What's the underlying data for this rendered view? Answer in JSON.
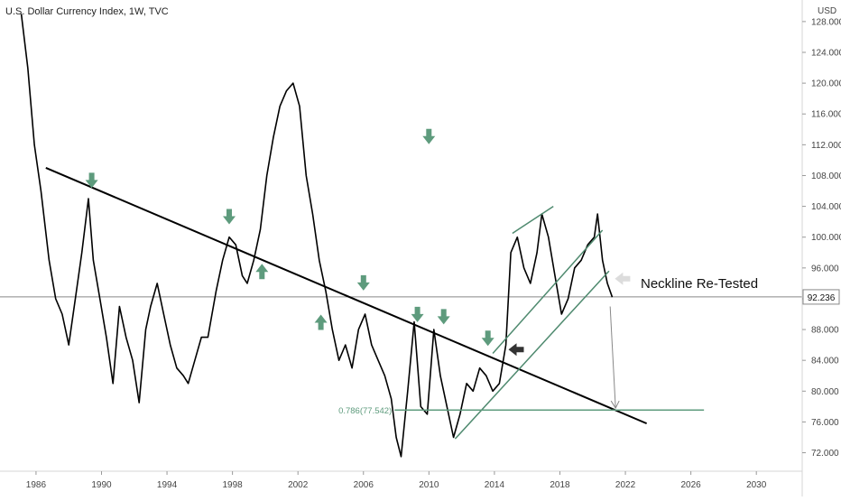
{
  "chart_data": {
    "type": "line",
    "title": "U.S. Dollar Currency Index, 1W, TVC",
    "currency_label": "USD",
    "current_price": 92.236,
    "current_price_label": "92.236",
    "annotation_text": "Neckline Re-Tested",
    "fib_label": "0.786(77.542)",
    "fib_value": 77.542,
    "colors": {
      "price": "#000000",
      "neckline": "#000000",
      "channel": "#4f8a6f",
      "arrow_green": "#5e9b7d",
      "arrow_dark": "#333333",
      "fib_line": "#5e9b7d",
      "projection": "#888888",
      "price_line": "#888888",
      "price_tag_bg": "#ffffff",
      "axis_text": "#444444"
    },
    "x_ticks": [
      1986,
      1990,
      1994,
      1998,
      2002,
      2006,
      2010,
      2014,
      2018,
      2022,
      2026,
      2030
    ],
    "x_tick_labels": [
      "1986",
      "1990",
      "1994",
      "1998",
      "2002",
      "2006",
      "2010",
      "2014",
      "2018",
      "2022",
      "2026",
      "2030"
    ],
    "xlim": [
      1983.8,
      2032.8
    ],
    "y_ticks": [
      72,
      76,
      80,
      84,
      88,
      92,
      96,
      100,
      104,
      108,
      112,
      116,
      120,
      124,
      128
    ],
    "y_tick_labels": [
      "72.000",
      "76.000",
      "80.000",
      "84.000",
      "88.000",
      "92.000",
      "96.000",
      "100.000",
      "104.000",
      "108.000",
      "112.000",
      "116.000",
      "120.000",
      "124.000",
      "128.000"
    ],
    "ylim": [
      69.6,
      130.8
    ],
    "series": [
      {
        "x": [
          1985.1,
          1985.5,
          1985.9,
          1986.3,
          1986.8,
          1987.2,
          1987.6,
          1988.0,
          1988.4,
          1988.8,
          1989.2,
          1989.5,
          1989.9,
          1990.3,
          1990.7,
          1991.1,
          1991.5,
          1991.9,
          1992.3,
          1992.7,
          1993.0,
          1993.4,
          1993.8,
          1994.2,
          1994.6,
          1995.0,
          1995.3,
          1995.7,
          1996.1,
          1996.5,
          1997.0,
          1997.4,
          1997.8,
          1998.2,
          1998.6,
          1998.9,
          1999.3,
          1999.7,
          2000.1,
          2000.5,
          2000.9,
          2001.3,
          2001.7,
          2002.1,
          2002.5,
          2002.9,
          2003.3,
          2003.7,
          2004.1,
          2004.5,
          2004.9,
          2005.3,
          2005.7,
          2006.1,
          2006.5,
          2006.9,
          2007.3,
          2007.7,
          2008.0,
          2008.3,
          2008.7,
          2009.1,
          2009.5,
          2009.9,
          2010.3,
          2010.7,
          2011.1,
          2011.5,
          2011.9,
          2012.3,
          2012.7,
          2013.1,
          2013.5,
          2013.9,
          2014.3,
          2014.7,
          2015.0,
          2015.4,
          2015.8,
          2016.2,
          2016.6,
          2016.9,
          2017.3,
          2017.7,
          2018.1,
          2018.5,
          2018.9,
          2019.3,
          2019.7,
          2020.1,
          2020.3,
          2020.6,
          2020.9,
          2021.2
        ],
        "y": [
          129.0,
          122.0,
          112.0,
          106.0,
          97.0,
          92.0,
          90.0,
          86.0,
          92.0,
          98.0,
          105.0,
          97.0,
          92.0,
          87.0,
          81.0,
          91.0,
          87.0,
          84.0,
          78.5,
          88.0,
          91.0,
          94.0,
          90.0,
          86.0,
          83.0,
          82.0,
          81.0,
          84.0,
          87.0,
          87.0,
          93.0,
          97.0,
          100.0,
          99.0,
          95.0,
          94.0,
          97.0,
          101.0,
          108.0,
          113.0,
          117.0,
          119.0,
          120.0,
          117.0,
          108.0,
          103.0,
          97.0,
          93.0,
          88.0,
          84.0,
          86.0,
          83.0,
          88.0,
          90.0,
          86.0,
          84.0,
          82.0,
          79.0,
          74.0,
          71.5,
          80.0,
          89.0,
          78.0,
          77.0,
          88.0,
          82.0,
          78.0,
          74.0,
          77.0,
          81.0,
          80.0,
          83.0,
          82.0,
          80.0,
          81.0,
          86.0,
          98.0,
          100.0,
          96.0,
          94.0,
          98.0,
          103.0,
          100.0,
          95.0,
          90.0,
          92.0,
          96.0,
          97.0,
          99.0,
          100.0,
          103.0,
          97.0,
          94.0,
          92.2
        ]
      }
    ],
    "neckline": {
      "x": [
        1986.6,
        2023.3
      ],
      "y": [
        109.0,
        75.8
      ]
    },
    "channel_lines": [
      {
        "x": [
          2011.6,
          2021.0
        ],
        "y": [
          73.8,
          95.6
        ]
      },
      {
        "x": [
          2013.9,
          2020.6
        ],
        "y": [
          84.9,
          100.9
        ]
      },
      {
        "x": [
          2015.1,
          2017.6
        ],
        "y": [
          100.5,
          104.0
        ]
      }
    ],
    "projection_line": {
      "x": [
        2021.4,
        2021.4
      ],
      "y": [
        91.0,
        77.8
      ]
    },
    "fib_range": [
      2007.9,
      2026.8
    ],
    "markers": [
      {
        "x": 2010.0,
        "y": 113.0,
        "dir": "down",
        "color": "green"
      },
      {
        "x": 1989.4,
        "y": 107.3,
        "dir": "down",
        "color": "green"
      },
      {
        "x": 1997.8,
        "y": 102.6,
        "dir": "down",
        "color": "green"
      },
      {
        "x": 1999.8,
        "y": 95.6,
        "dir": "up",
        "color": "green"
      },
      {
        "x": 2003.4,
        "y": 89.0,
        "dir": "up",
        "color": "green"
      },
      {
        "x": 2006.0,
        "y": 94.0,
        "dir": "down",
        "color": "green"
      },
      {
        "x": 2009.3,
        "y": 89.9,
        "dir": "down",
        "color": "green"
      },
      {
        "x": 2010.9,
        "y": 89.6,
        "dir": "down",
        "color": "green"
      },
      {
        "x": 2013.6,
        "y": 86.8,
        "dir": "down",
        "color": "green"
      },
      {
        "x": 2015.3,
        "y": 85.4,
        "dir": "left",
        "color": "dark"
      },
      {
        "x": 2021.8,
        "y": 94.6,
        "dir": "left",
        "color": "light"
      }
    ]
  }
}
